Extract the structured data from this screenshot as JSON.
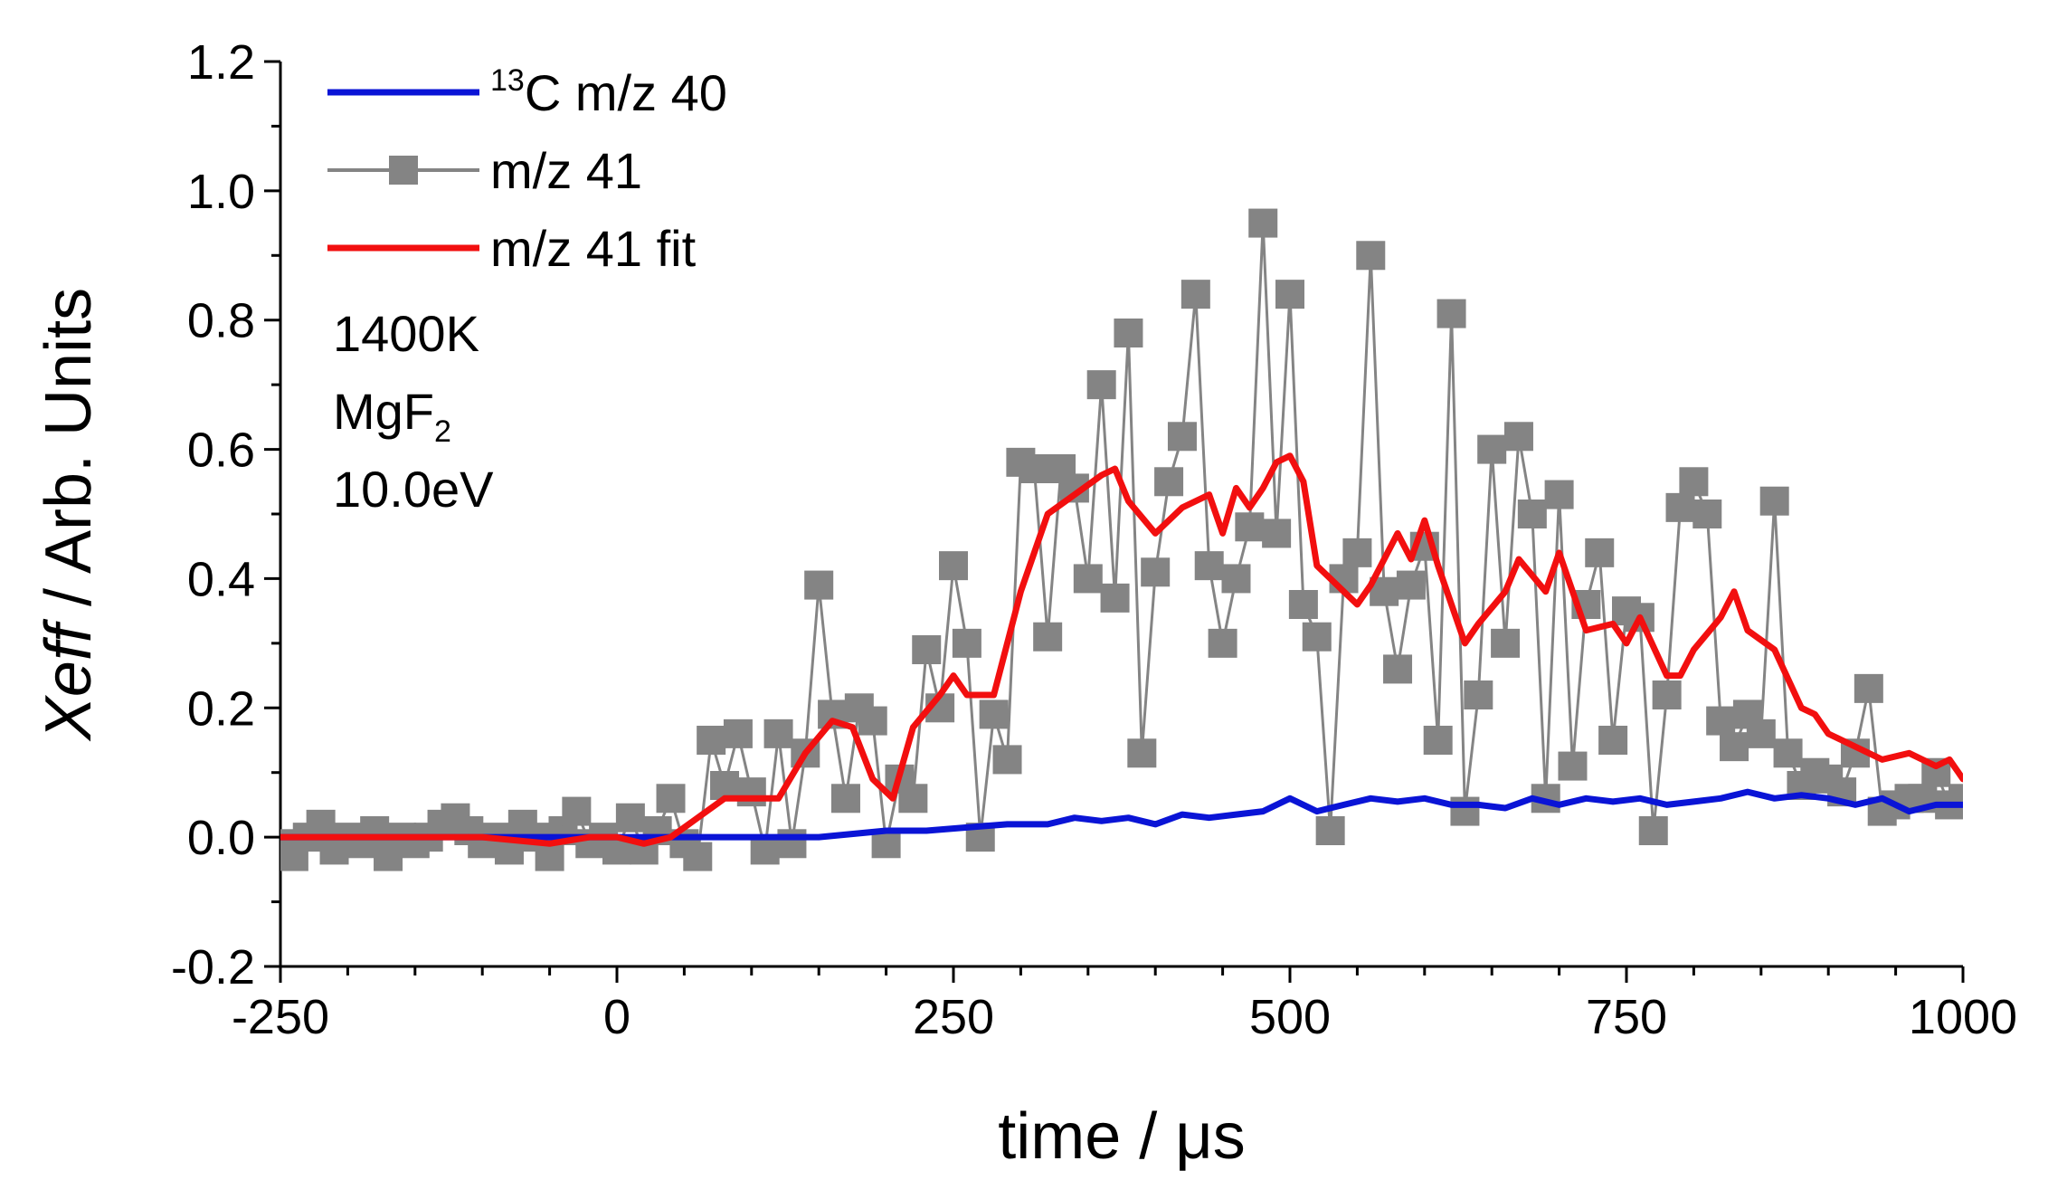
{
  "chart_data": {
    "type": "line",
    "xlabel": "time / μs",
    "ylabel_italic": "Xeff",
    "ylabel_rest": " / Arb. Units",
    "xlim": [
      -250,
      1000
    ],
    "ylim": [
      -0.2,
      1.2
    ],
    "x_ticks": [
      -250,
      0,
      250,
      500,
      750,
      1000
    ],
    "x_tick_labels": [
      "-250",
      "0",
      "250",
      "500",
      "750",
      "1000"
    ],
    "y_ticks": [
      -0.2,
      0.0,
      0.2,
      0.4,
      0.6,
      0.8,
      1.0,
      1.2
    ],
    "y_tick_labels": [
      "-0.2",
      "0.0",
      "0.2",
      "0.4",
      "0.6",
      "0.8",
      "1.0",
      "1.2"
    ],
    "legend_position": "top-left",
    "series": [
      {
        "name": "¹³C m/z 40",
        "name_sup": "13",
        "name_main": "C m/z 40",
        "color": "#0a14d6",
        "style": "line",
        "x": [
          -250,
          -200,
          -150,
          -100,
          -50,
          0,
          50,
          100,
          150,
          200,
          230,
          260,
          290,
          320,
          340,
          360,
          380,
          400,
          420,
          440,
          460,
          480,
          500,
          520,
          540,
          560,
          580,
          600,
          620,
          640,
          660,
          680,
          700,
          720,
          740,
          760,
          780,
          800,
          820,
          840,
          860,
          880,
          900,
          920,
          940,
          960,
          980,
          1000
        ],
        "values": [
          0.0,
          0.0,
          0.0,
          0.0,
          0.0,
          0.0,
          0.0,
          0.0,
          0.0,
          0.01,
          0.01,
          0.015,
          0.02,
          0.02,
          0.03,
          0.025,
          0.03,
          0.02,
          0.035,
          0.03,
          0.035,
          0.04,
          0.06,
          0.04,
          0.05,
          0.06,
          0.055,
          0.06,
          0.05,
          0.05,
          0.045,
          0.06,
          0.05,
          0.06,
          0.055,
          0.06,
          0.05,
          0.055,
          0.06,
          0.07,
          0.06,
          0.065,
          0.06,
          0.05,
          0.06,
          0.04,
          0.05,
          0.05
        ]
      },
      {
        "name": "m/z 41",
        "color": "#848484",
        "style": "line-square-markers",
        "x": [
          -250,
          -240,
          -230,
          -220,
          -210,
          -200,
          -190,
          -180,
          -170,
          -160,
          -150,
          -140,
          -130,
          -120,
          -110,
          -100,
          -90,
          -80,
          -70,
          -60,
          -50,
          -40,
          -30,
          -20,
          -10,
          0,
          10,
          20,
          30,
          40,
          50,
          60,
          70,
          80,
          90,
          100,
          110,
          120,
          130,
          140,
          150,
          160,
          170,
          180,
          190,
          200,
          210,
          220,
          230,
          240,
          250,
          260,
          270,
          280,
          290,
          300,
          310,
          320,
          330,
          340,
          350,
          360,
          370,
          380,
          390,
          400,
          410,
          420,
          430,
          440,
          450,
          460,
          470,
          480,
          490,
          500,
          510,
          520,
          530,
          540,
          550,
          560,
          570,
          580,
          590,
          600,
          610,
          620,
          630,
          640,
          650,
          660,
          670,
          680,
          690,
          700,
          710,
          720,
          730,
          740,
          750,
          760,
          770,
          780,
          790,
          800,
          810,
          820,
          830,
          840,
          850,
          860,
          870,
          880,
          890,
          900,
          910,
          920,
          930,
          940,
          950,
          960,
          970,
          980,
          990,
          1000
        ],
        "values": [
          -0.01,
          -0.03,
          0.0,
          0.02,
          -0.02,
          0.0,
          -0.01,
          0.01,
          -0.03,
          0.0,
          -0.01,
          0.0,
          0.02,
          0.03,
          0.01,
          -0.01,
          0.0,
          -0.02,
          0.02,
          0.0,
          -0.03,
          0.01,
          0.04,
          -0.01,
          0.0,
          -0.02,
          0.03,
          -0.02,
          0.01,
          0.06,
          -0.01,
          -0.03,
          0.15,
          0.08,
          0.16,
          0.07,
          -0.02,
          0.16,
          -0.01,
          0.13,
          0.39,
          0.19,
          0.06,
          0.2,
          0.18,
          -0.01,
          0.09,
          0.06,
          0.29,
          0.2,
          0.42,
          0.3,
          0.0,
          0.19,
          0.12,
          0.58,
          0.57,
          0.31,
          0.57,
          0.54,
          0.4,
          0.7,
          0.37,
          0.78,
          0.13,
          0.41,
          0.55,
          0.62,
          0.84,
          0.42,
          0.3,
          0.4,
          0.48,
          0.95,
          0.47,
          0.84,
          0.36,
          0.31,
          0.01,
          0.4,
          0.44,
          0.9,
          0.38,
          0.26,
          0.39,
          0.45,
          0.15,
          0.81,
          0.04,
          0.22,
          0.6,
          0.3,
          0.62,
          0.5,
          0.06,
          0.53,
          0.11,
          0.36,
          0.44,
          0.15,
          0.35,
          0.34,
          0.01,
          0.22,
          0.51,
          0.55,
          0.5,
          0.18,
          0.14,
          0.19,
          0.16,
          0.52,
          0.13,
          0.08,
          0.1,
          0.09,
          0.07,
          0.13,
          0.23,
          0.04,
          0.05,
          0.06,
          0.06,
          0.1,
          0.05,
          0.06
        ]
      },
      {
        "name": "m/z 41 fit",
        "color": "#f20f0f",
        "style": "line",
        "x": [
          -250,
          -200,
          -150,
          -100,
          -50,
          -20,
          0,
          20,
          40,
          60,
          80,
          100,
          120,
          140,
          160,
          175,
          190,
          205,
          220,
          240,
          250,
          260,
          280,
          300,
          320,
          340,
          360,
          370,
          380,
          400,
          410,
          420,
          440,
          450,
          460,
          470,
          480,
          490,
          500,
          510,
          520,
          540,
          550,
          560,
          580,
          590,
          600,
          610,
          630,
          640,
          660,
          670,
          690,
          700,
          720,
          740,
          750,
          760,
          780,
          790,
          800,
          820,
          830,
          840,
          860,
          880,
          890,
          900,
          920,
          940,
          960,
          980,
          990,
          1000
        ],
        "values": [
          0.0,
          0.0,
          0.0,
          0.0,
          -0.01,
          0.0,
          0.0,
          -0.01,
          0.0,
          0.03,
          0.06,
          0.06,
          0.06,
          0.13,
          0.18,
          0.17,
          0.09,
          0.06,
          0.17,
          0.22,
          0.25,
          0.22,
          0.22,
          0.38,
          0.5,
          0.53,
          0.56,
          0.57,
          0.52,
          0.47,
          0.49,
          0.51,
          0.53,
          0.47,
          0.54,
          0.51,
          0.54,
          0.58,
          0.59,
          0.55,
          0.42,
          0.38,
          0.36,
          0.39,
          0.47,
          0.43,
          0.49,
          0.42,
          0.3,
          0.33,
          0.38,
          0.43,
          0.38,
          0.44,
          0.32,
          0.33,
          0.3,
          0.34,
          0.25,
          0.25,
          0.29,
          0.34,
          0.38,
          0.32,
          0.29,
          0.2,
          0.19,
          0.16,
          0.14,
          0.12,
          0.13,
          0.11,
          0.12,
          0.09
        ]
      }
    ],
    "annotations": [
      {
        "main": "1400K",
        "sub": ""
      },
      {
        "main": "MgF",
        "sub": "2"
      },
      {
        "main": "10.0eV",
        "sub": ""
      }
    ]
  }
}
